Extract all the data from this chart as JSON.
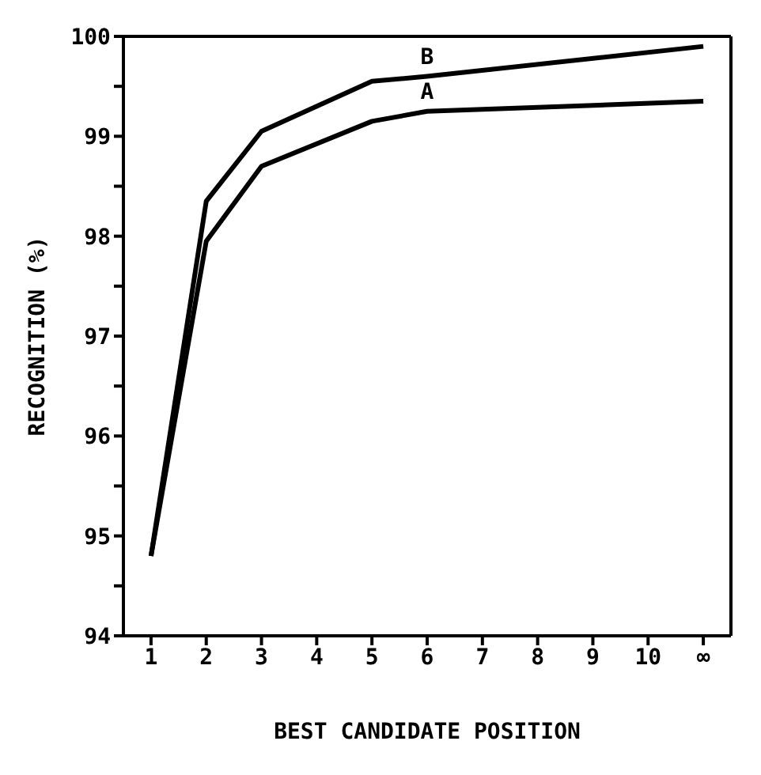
{
  "chart_data": {
    "type": "line",
    "xlabel": "BEST CANDIDATE POSITION",
    "ylabel": "RECOGNITION (%)",
    "x": [
      1,
      2,
      3,
      5,
      6,
      11
    ],
    "series": [
      {
        "name": "B",
        "color": "#000000",
        "values": [
          94.8,
          98.35,
          99.05,
          99.55,
          99.6,
          99.9
        ]
      },
      {
        "name": "A",
        "color": "#000000",
        "values": [
          94.8,
          97.95,
          98.7,
          99.15,
          99.25,
          99.35
        ]
      }
    ],
    "xlim": [
      0.5,
      11.5
    ],
    "xticks": [
      1,
      2,
      3,
      4,
      5,
      6,
      7,
      8,
      9,
      10,
      {
        "value": 11,
        "label": "∞"
      }
    ],
    "ylim": [
      94,
      100
    ],
    "yticks": [
      94,
      {
        "value": 94.5,
        "label": null
      },
      95,
      {
        "value": 95.5,
        "label": null
      },
      96,
      {
        "value": 96.5,
        "label": null
      },
      97,
      {
        "value": 97.5,
        "label": null
      },
      98,
      {
        "value": 98.5,
        "label": null
      },
      99,
      {
        "value": 99.5,
        "label": null
      },
      100
    ],
    "grid": false,
    "legend": false,
    "marker": "none",
    "line_style": "solid"
  }
}
